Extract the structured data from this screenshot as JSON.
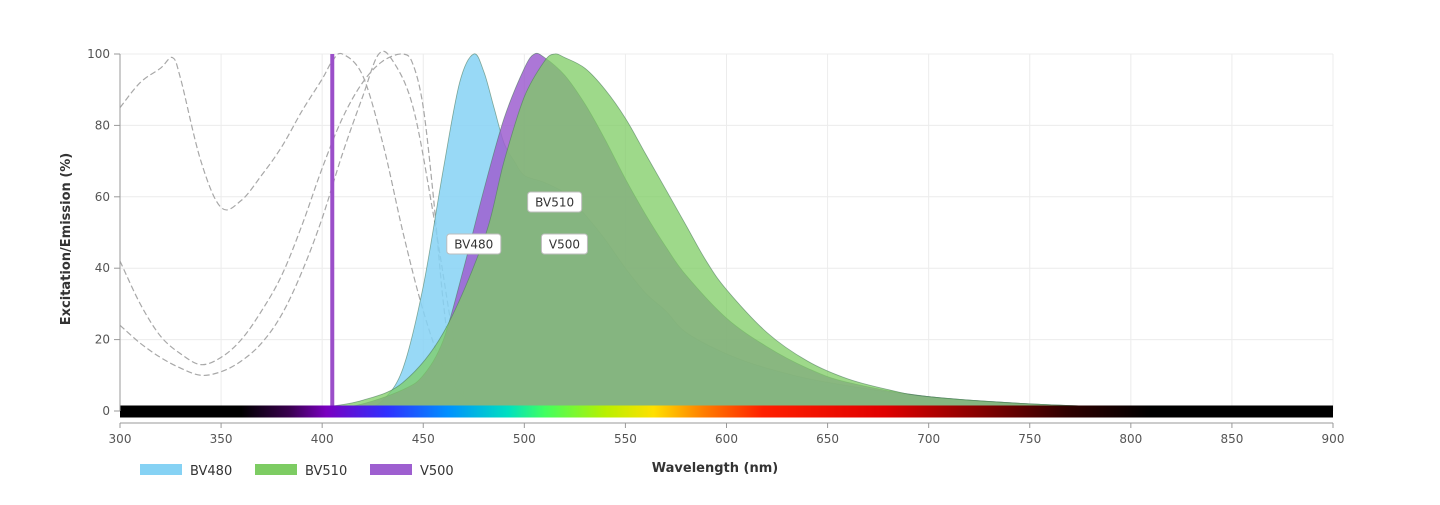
{
  "chart_data": {
    "type": "area",
    "title": "",
    "xlabel": "Wavelength (nm)",
    "ylabel": "Excitation/Emission (%)",
    "xlim": [
      300,
      900
    ],
    "ylim": [
      0,
      100
    ],
    "x_ticks": [
      "300",
      "350",
      "400",
      "450",
      "500",
      "550",
      "600",
      "650",
      "700",
      "750",
      "800",
      "850",
      "900"
    ],
    "y_ticks": [
      "0",
      "20",
      "40",
      "60",
      "80",
      "100"
    ],
    "grid": true,
    "legend_position": "bottom-left",
    "laser_line": {
      "wavelength": 405,
      "color": "#9b4fc9"
    },
    "series": [
      {
        "name": "BV480",
        "color": "#86d2f4",
        "peak_label": "BV480",
        "emission": [
          [
            420,
            0
          ],
          [
            430,
            3
          ],
          [
            440,
            12
          ],
          [
            450,
            35
          ],
          [
            460,
            68
          ],
          [
            468,
            92
          ],
          [
            475,
            100
          ],
          [
            480,
            95
          ],
          [
            485,
            85
          ],
          [
            490,
            75
          ],
          [
            495,
            70
          ],
          [
            500,
            66
          ],
          [
            510,
            64
          ],
          [
            520,
            61
          ],
          [
            530,
            55
          ],
          [
            540,
            48
          ],
          [
            550,
            40
          ],
          [
            560,
            33
          ],
          [
            570,
            28
          ],
          [
            580,
            22
          ],
          [
            600,
            16
          ],
          [
            620,
            12
          ],
          [
            650,
            8
          ],
          [
            700,
            4
          ],
          [
            750,
            2
          ],
          [
            800,
            1
          ],
          [
            850,
            0.5
          ],
          [
            900,
            0
          ]
        ],
        "excitation": [
          [
            300,
            24
          ],
          [
            310,
            19
          ],
          [
            320,
            15
          ],
          [
            330,
            12
          ],
          [
            340,
            10
          ],
          [
            350,
            11
          ],
          [
            360,
            14
          ],
          [
            370,
            19
          ],
          [
            380,
            27
          ],
          [
            390,
            39
          ],
          [
            400,
            54
          ],
          [
            410,
            72
          ],
          [
            420,
            88
          ],
          [
            428,
            100
          ],
          [
            435,
            98
          ],
          [
            445,
            85
          ],
          [
            455,
            55
          ],
          [
            465,
            20
          ],
          [
            470,
            5
          ],
          [
            475,
            0
          ]
        ]
      },
      {
        "name": "BV510",
        "color": "#7dcc63",
        "peak_label": "BV510",
        "emission": [
          [
            380,
            0
          ],
          [
            400,
            1
          ],
          [
            420,
            3
          ],
          [
            440,
            8
          ],
          [
            460,
            22
          ],
          [
            480,
            48
          ],
          [
            490,
            70
          ],
          [
            500,
            88
          ],
          [
            510,
            98
          ],
          [
            515,
            100
          ],
          [
            520,
            99
          ],
          [
            530,
            96
          ],
          [
            540,
            90
          ],
          [
            550,
            82
          ],
          [
            560,
            72
          ],
          [
            570,
            62
          ],
          [
            580,
            52
          ],
          [
            590,
            42
          ],
          [
            600,
            34
          ],
          [
            620,
            22
          ],
          [
            640,
            14
          ],
          [
            660,
            9
          ],
          [
            680,
            6
          ],
          [
            700,
            4
          ],
          [
            750,
            2
          ],
          [
            800,
            1
          ],
          [
            850,
            0.5
          ],
          [
            900,
            0
          ]
        ],
        "excitation": [
          [
            300,
            85
          ],
          [
            310,
            92
          ],
          [
            320,
            96
          ],
          [
            326,
            99
          ],
          [
            330,
            93
          ],
          [
            340,
            70
          ],
          [
            350,
            57
          ],
          [
            360,
            59
          ],
          [
            370,
            66
          ],
          [
            380,
            74
          ],
          [
            390,
            84
          ],
          [
            400,
            93
          ],
          [
            405,
            98
          ],
          [
            410,
            100
          ],
          [
            420,
            94
          ],
          [
            430,
            75
          ],
          [
            440,
            50
          ],
          [
            450,
            28
          ],
          [
            460,
            12
          ],
          [
            470,
            4
          ],
          [
            480,
            0
          ]
        ]
      },
      {
        "name": "V500",
        "color": "#9e5fd0",
        "peak_label": "V500",
        "emission": [
          [
            400,
            0
          ],
          [
            420,
            2
          ],
          [
            440,
            6
          ],
          [
            450,
            10
          ],
          [
            460,
            20
          ],
          [
            470,
            40
          ],
          [
            480,
            62
          ],
          [
            490,
            82
          ],
          [
            500,
            96
          ],
          [
            505,
            100
          ],
          [
            510,
            99
          ],
          [
            520,
            94
          ],
          [
            530,
            86
          ],
          [
            540,
            76
          ],
          [
            550,
            65
          ],
          [
            560,
            55
          ],
          [
            570,
            46
          ],
          [
            580,
            38
          ],
          [
            600,
            26
          ],
          [
            620,
            18
          ],
          [
            640,
            12
          ],
          [
            660,
            8
          ],
          [
            700,
            4
          ],
          [
            750,
            2
          ],
          [
            800,
            1
          ],
          [
            900,
            0
          ]
        ],
        "excitation": [
          [
            300,
            42
          ],
          [
            310,
            30
          ],
          [
            320,
            21
          ],
          [
            330,
            16
          ],
          [
            340,
            13
          ],
          [
            350,
            15
          ],
          [
            360,
            20
          ],
          [
            370,
            28
          ],
          [
            380,
            38
          ],
          [
            390,
            52
          ],
          [
            400,
            68
          ],
          [
            410,
            82
          ],
          [
            420,
            92
          ],
          [
            430,
            98
          ],
          [
            440,
            100
          ],
          [
            445,
            97
          ],
          [
            450,
            85
          ],
          [
            455,
            60
          ],
          [
            460,
            30
          ],
          [
            465,
            10
          ],
          [
            470,
            0
          ]
        ]
      }
    ]
  }
}
